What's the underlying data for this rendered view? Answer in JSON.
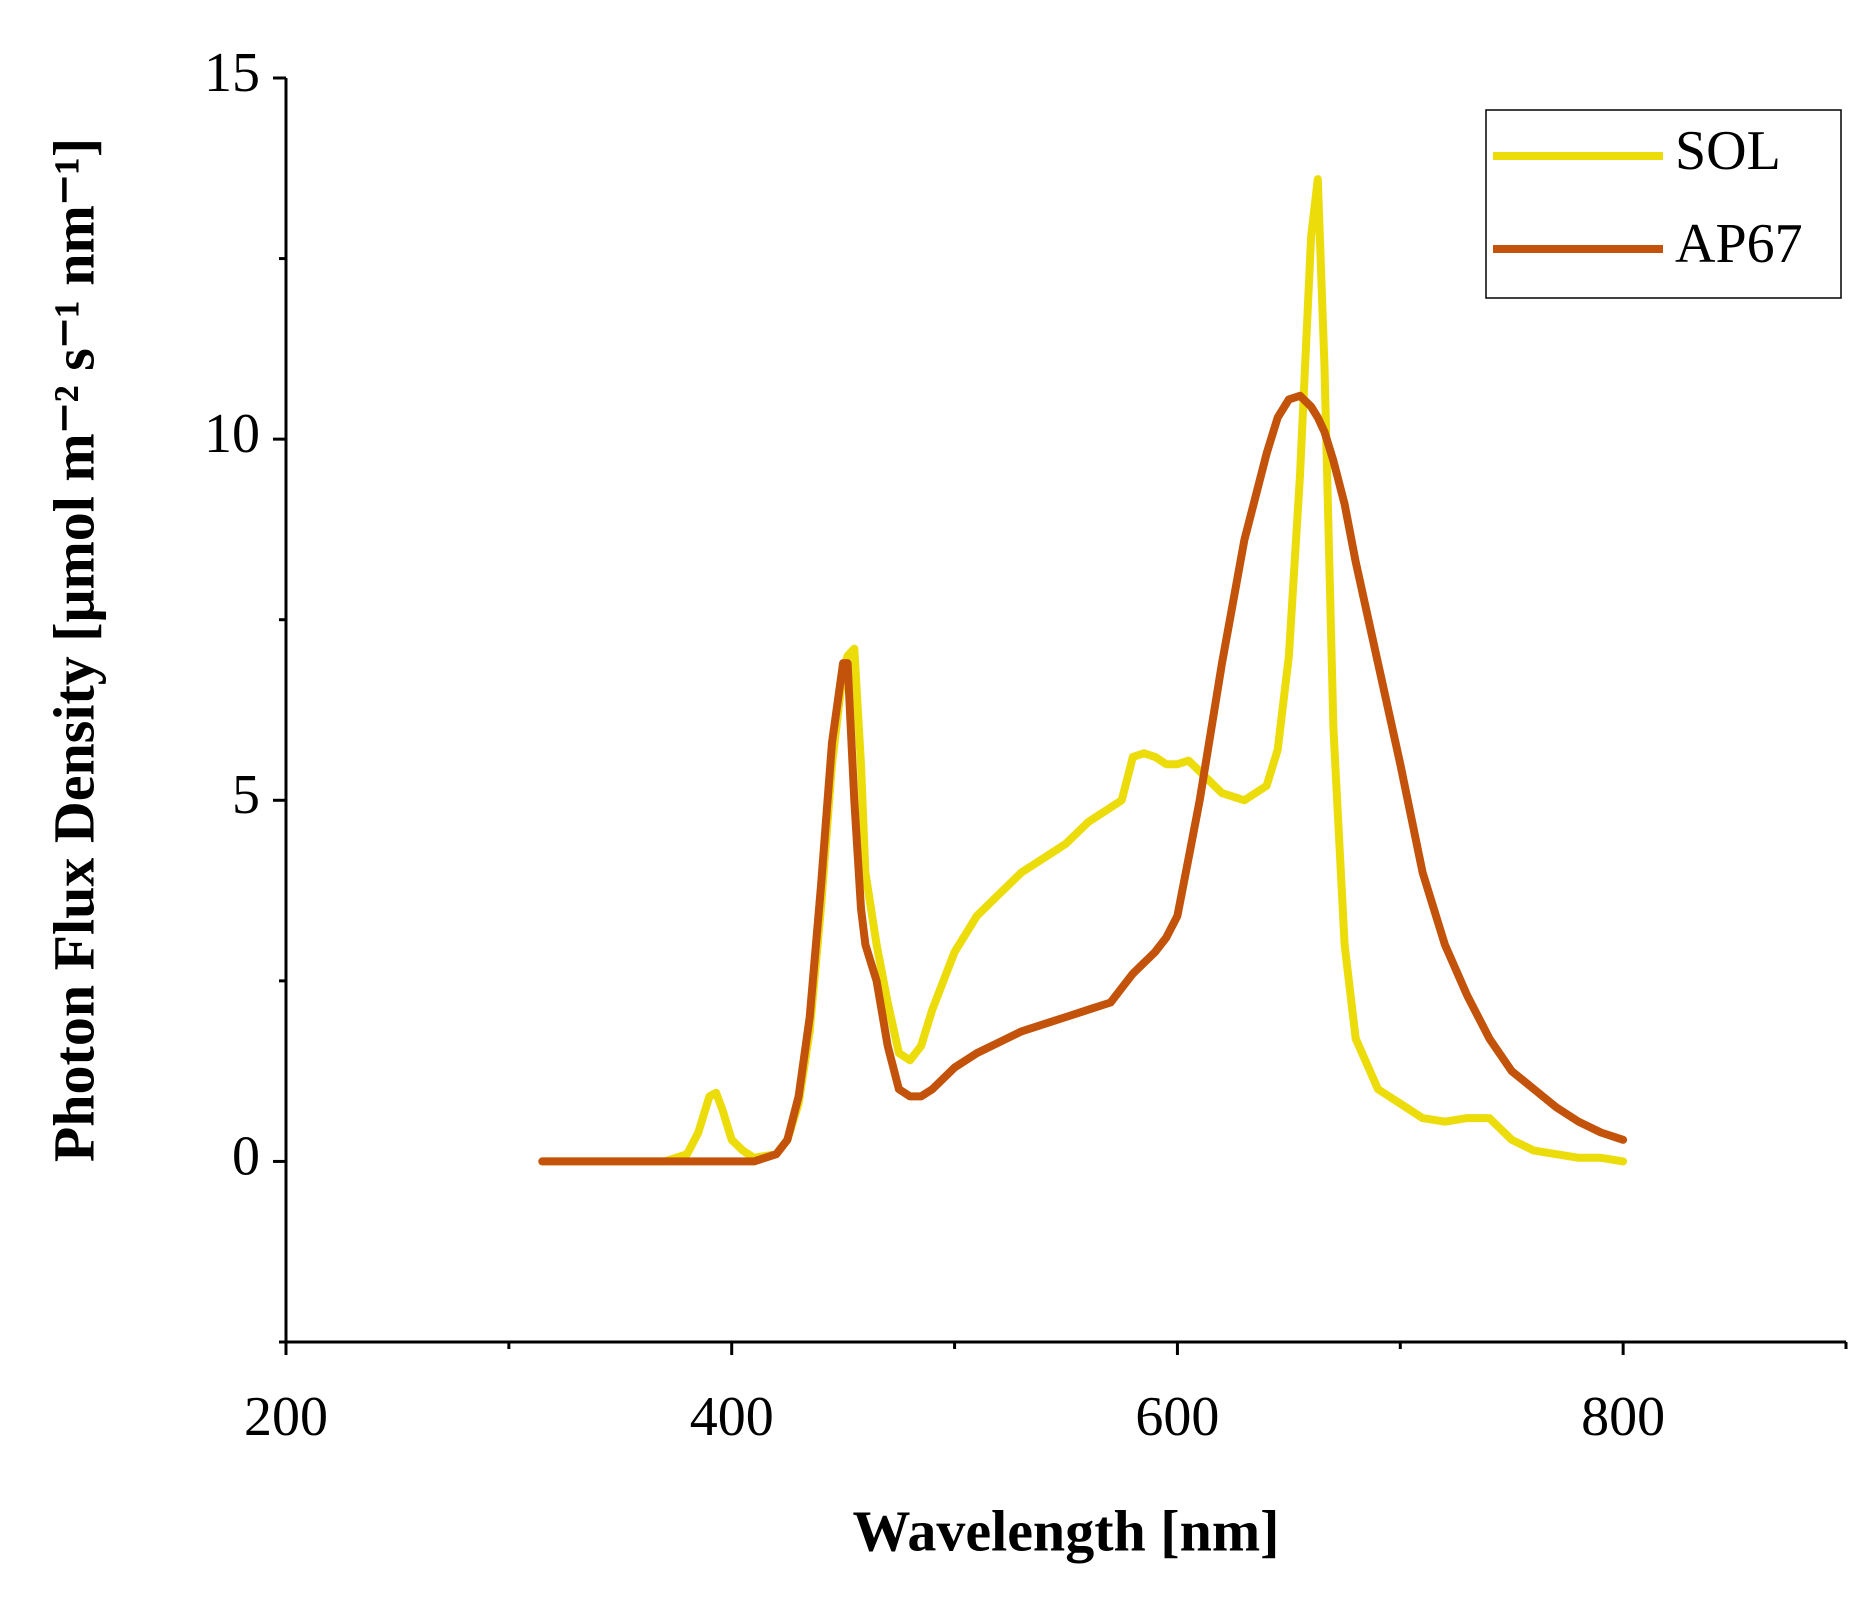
{
  "chart_data": {
    "type": "line",
    "xlabel": "Wavelength [nm]",
    "ylabel": "Photon Flux Density [μmol m⁻² s⁻¹ nm⁻¹]",
    "x": [
      315,
      330,
      350,
      370,
      380,
      385,
      390,
      393,
      396,
      400,
      405,
      410,
      420,
      425,
      430,
      435,
      440,
      445,
      450,
      452,
      455,
      458,
      460,
      465,
      470,
      475,
      480,
      485,
      490,
      500,
      510,
      520,
      530,
      540,
      550,
      560,
      570,
      575,
      580,
      585,
      590,
      595,
      600,
      605,
      610,
      620,
      630,
      640,
      645,
      650,
      655,
      660,
      663,
      666,
      670,
      675,
      680,
      690,
      700,
      710,
      720,
      730,
      740,
      750,
      760,
      770,
      780,
      790,
      800
    ],
    "series": [
      {
        "name": "SOL",
        "color": "#ecdc0a",
        "values": [
          0,
          0,
          0,
          0,
          0.1,
          0.4,
          0.9,
          0.95,
          0.7,
          0.3,
          0.15,
          0.05,
          0.1,
          0.3,
          0.8,
          1.8,
          3.5,
          5.5,
          6.8,
          7.0,
          7.1,
          5.5,
          4.0,
          3.0,
          2.2,
          1.5,
          1.4,
          1.6,
          2.1,
          2.9,
          3.4,
          3.7,
          4.0,
          4.2,
          4.4,
          4.7,
          4.9,
          5.0,
          5.6,
          5.65,
          5.6,
          5.5,
          5.5,
          5.55,
          5.4,
          5.1,
          5.0,
          5.2,
          5.7,
          7.0,
          9.5,
          12.8,
          13.6,
          11.0,
          6.0,
          3.0,
          1.7,
          1.0,
          0.8,
          0.6,
          0.55,
          0.6,
          0.6,
          0.3,
          0.15,
          0.1,
          0.05,
          0.05,
          0
        ]
      },
      {
        "name": "AP67",
        "color": "#c3530a",
        "values": [
          0,
          0,
          0,
          0,
          0,
          0,
          0,
          0,
          0,
          0,
          0,
          0,
          0.1,
          0.3,
          0.9,
          2.0,
          3.8,
          5.8,
          6.9,
          6.9,
          5.0,
          3.5,
          3.0,
          2.5,
          1.6,
          1.0,
          0.9,
          0.9,
          1.0,
          1.3,
          1.5,
          1.65,
          1.8,
          1.9,
          2.0,
          2.1,
          2.2,
          2.4,
          2.6,
          2.75,
          2.9,
          3.1,
          3.4,
          4.2,
          5.0,
          6.9,
          8.6,
          9.8,
          10.3,
          10.55,
          10.6,
          10.45,
          10.3,
          10.1,
          9.7,
          9.1,
          8.3,
          6.9,
          5.5,
          4.0,
          3.0,
          2.3,
          1.7,
          1.25,
          1.0,
          0.75,
          0.55,
          0.4,
          0.3
        ]
      }
    ],
    "xlim": [
      200,
      900
    ],
    "xticks": [
      200,
      400,
      600,
      800
    ],
    "xminorticks": [
      300,
      500,
      700,
      900
    ],
    "ylim": [
      -2.5,
      15
    ],
    "yticks": [
      0,
      5,
      10,
      15
    ],
    "yminorticks": [
      -2.5,
      2.5,
      7.5,
      12.5
    ],
    "legend": "upper right",
    "grid": false
  }
}
